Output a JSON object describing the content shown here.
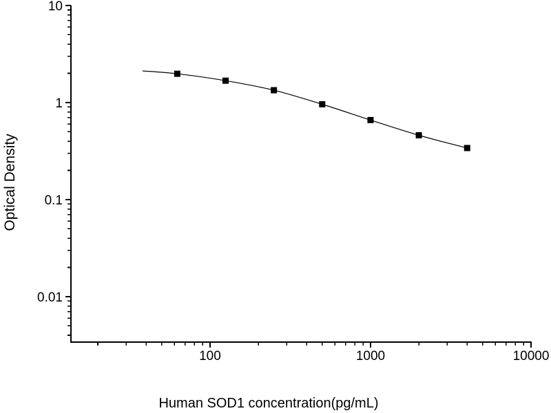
{
  "chart_data": {
    "type": "scatter",
    "title": "",
    "xlabel": "Human SOD1 concentration(pg/mL)",
    "ylabel": "Optical Density",
    "xscale": "log",
    "yscale": "log",
    "xlim": [
      13.6,
      10000
    ],
    "ylim": [
      0.0034,
      10
    ],
    "x": [
      62.5,
      125,
      250,
      500,
      1000,
      2000,
      4000
    ],
    "y": [
      1.98,
      1.68,
      1.34,
      0.96,
      0.66,
      0.46,
      0.34
    ],
    "curve_start": {
      "x": 38,
      "y": 2.12
    },
    "x_major_ticks": [
      {
        "value": 100,
        "label": "100"
      },
      {
        "value": 1000,
        "label": "1000"
      },
      {
        "value": 10000,
        "label": "10000"
      }
    ],
    "x_minor_ticks": [
      20,
      30,
      40,
      50,
      60,
      70,
      80,
      90,
      200,
      300,
      400,
      500,
      600,
      700,
      800,
      900,
      2000,
      3000,
      4000,
      5000,
      6000,
      7000,
      8000,
      9000
    ],
    "y_major_ticks": [
      {
        "value": 10,
        "label": "10"
      },
      {
        "value": 1,
        "label": "1"
      },
      {
        "value": 0.1,
        "label": "0.1"
      },
      {
        "value": 0.01,
        "label": "0.01"
      }
    ],
    "y_minor_ticks": [
      9,
      8,
      7,
      6,
      5,
      4,
      3,
      2,
      0.9,
      0.8,
      0.7,
      0.6,
      0.5,
      0.4,
      0.3,
      0.2,
      0.09,
      0.08,
      0.07,
      0.06,
      0.05,
      0.04,
      0.03,
      0.02,
      0.009,
      0.008,
      0.007,
      0.006,
      0.005,
      0.004
    ],
    "marker": {
      "shape": "square",
      "size": 9,
      "color": "#000000"
    },
    "line_color": "#000000",
    "axis_color": "#000000",
    "background": "#ffffff",
    "legend": "none",
    "grid": "off"
  }
}
